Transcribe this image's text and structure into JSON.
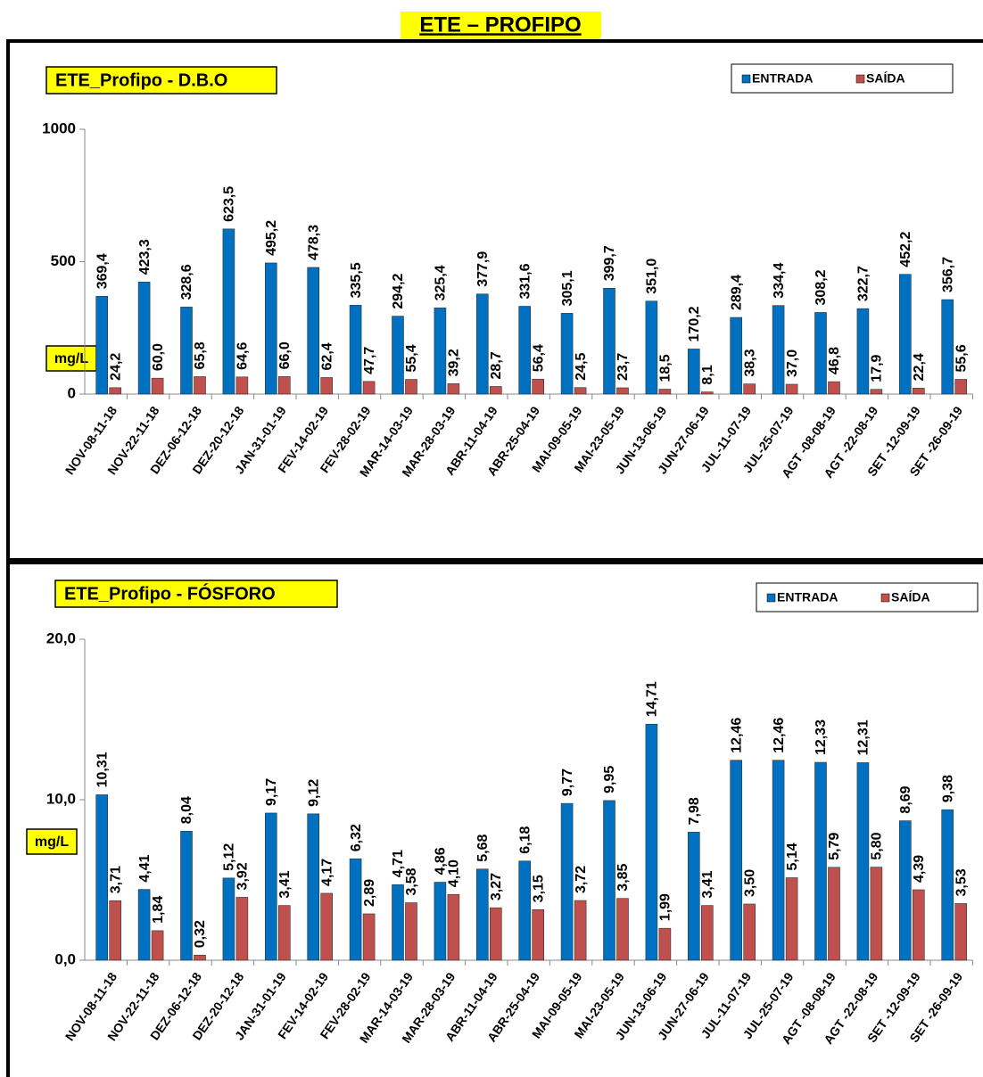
{
  "title": "ETE – PROFIPO",
  "chart_data": [
    {
      "type": "bar",
      "title": "ETE_Profipo - D.B.O",
      "y_label": "mg/L",
      "legend": "upper right",
      "categories": [
        "NOV-08-11-18",
        "NOV-22-11-18",
        "DEZ-06-12-18",
        "DEZ-20-12-18",
        "JAN-31-01-19",
        "FEV-14-02-19",
        "FEV-28-02-19",
        "MAR-14-03-19",
        "MAR-28-03-19",
        "ABR-11-04-19",
        "ABR-25-04-19",
        "MAI-09-05-19",
        "MAI-23-05-19",
        "JUN-13-06-19",
        "JUN-27-06-19",
        "JUL-11-07-19",
        "JUL-25-07-19",
        "AGT -08-08-19",
        "AGT -22-08-19",
        "SET -12-09-19",
        "SET -26-09-19"
      ],
      "series": [
        {
          "name": "ENTRADA",
          "color": "#0070c0",
          "values": [
            369.4,
            423.3,
            328.6,
            623.5,
            495.2,
            478.3,
            335.5,
            294.2,
            325.4,
            377.9,
            331.6,
            305.1,
            399.7,
            351.0,
            170.2,
            289.4,
            334.4,
            308.2,
            322.7,
            452.2,
            356.7
          ],
          "value_labels": [
            "369,4",
            "423,3",
            "328,6",
            "623,5",
            "495,2",
            "478,3",
            "335,5",
            "294,2",
            "325,4",
            "377,9",
            "331,6",
            "305,1",
            "399,7",
            "351,0",
            "170,2",
            "289,4",
            "334,4",
            "308,2",
            "322,7",
            "452,2",
            "356,7"
          ]
        },
        {
          "name": "SAÍDA",
          "color": "#c0504d",
          "values": [
            24.2,
            60.0,
            65.8,
            64.6,
            66.0,
            62.4,
            47.7,
            55.4,
            39.2,
            28.7,
            56.4,
            24.5,
            23.7,
            18.5,
            8.1,
            38.3,
            37.0,
            46.8,
            17.9,
            22.4,
            55.6
          ],
          "value_labels": [
            "24,2",
            "60,0",
            "65,8",
            "64,6",
            "66,0",
            "62,4",
            "47,7",
            "55,4",
            "39,2",
            "28,7",
            "56,4",
            "24,5",
            "23,7",
            "18,5",
            "8,1",
            "38,3",
            "37,0",
            "46,8",
            "17,9",
            "22,4",
            "55,6"
          ]
        }
      ],
      "ylim": [
        0,
        1000
      ],
      "yticks": [
        0,
        500,
        1000
      ]
    },
    {
      "type": "bar",
      "title": "ETE_Profipo - FÓSFORO",
      "y_label": "mg/L",
      "legend": "upper right",
      "categories": [
        "NOV-08-11-18",
        "NOV-22-11-18",
        "DEZ-06-12-18",
        "DEZ-20-12-18",
        "JAN-31-01-19",
        "FEV-14-02-19",
        "FEV-28-02-19",
        "MAR-14-03-19",
        "MAR-28-03-19",
        "ABR-11-04-19",
        "ABR-25-04-19",
        "MAI-09-05-19",
        "MAI-23-05-19",
        "JUN-13-06-19",
        "JUN-27-06-19",
        "JUL-11-07-19",
        "JUL-25-07-19",
        "AGT -08-08-19",
        "AGT -22-08-19",
        "SET -12-09-19",
        "SET -26-09-19"
      ],
      "series": [
        {
          "name": "ENTRADA",
          "color": "#0070c0",
          "values": [
            10.31,
            4.41,
            8.04,
            5.12,
            9.17,
            9.12,
            6.32,
            4.71,
            4.86,
            5.68,
            6.18,
            9.77,
            9.95,
            14.71,
            7.98,
            12.46,
            12.46,
            12.33,
            12.31,
            8.69,
            9.38
          ],
          "value_labels": [
            "10,31",
            "4,41",
            "8,04",
            "5,12",
            "9,17",
            "9,12",
            "6,32",
            "4,71",
            "4,86",
            "5,68",
            "6,18",
            "9,77",
            "9,95",
            "14,71",
            "7,98",
            "12,46",
            "12,46",
            "12,33",
            "12,31",
            "8,69",
            "9,38"
          ]
        },
        {
          "name": "SAÍDA",
          "color": "#c0504d",
          "values": [
            3.71,
            1.84,
            0.32,
            3.92,
            3.41,
            4.17,
            2.89,
            3.58,
            4.1,
            3.27,
            3.15,
            3.72,
            3.85,
            1.99,
            3.41,
            3.5,
            5.14,
            5.79,
            5.8,
            4.39,
            3.53
          ],
          "value_labels": [
            "3,71",
            "1,84",
            "0,32",
            "3,92",
            "3,41",
            "4,17",
            "2,89",
            "3,58",
            "4,10",
            "3,27",
            "3,15",
            "3,72",
            "3,85",
            "1,99",
            "3,41",
            "3,50",
            "5,14",
            "5,79",
            "5,80",
            "4,39",
            "3,53"
          ]
        }
      ],
      "ylim": [
        0,
        20
      ],
      "yticks": [
        {
          "value": 0,
          "label": "0,0"
        },
        {
          "value": 10,
          "label": "10,0"
        },
        {
          "value": 20,
          "label": "20,0"
        }
      ]
    }
  ]
}
